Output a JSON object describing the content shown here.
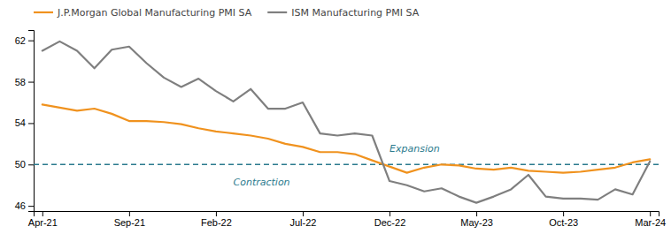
{
  "chart_data": {
    "type": "line",
    "categories": [
      "Apr-21",
      null,
      null,
      null,
      null,
      "Sep-21",
      null,
      null,
      null,
      null,
      "Feb-22",
      null,
      null,
      null,
      null,
      "Jul-22",
      null,
      null,
      null,
      null,
      "Dec-22",
      null,
      null,
      null,
      null,
      "May-23",
      null,
      null,
      null,
      null,
      "Oct-23",
      null,
      null,
      null,
      null,
      "Mar-24"
    ],
    "series": [
      {
        "name": "J.P.Morgan Global Manufacturing PMI SA",
        "color": "#F0921E",
        "values": [
          55.8,
          55.5,
          55.2,
          55.4,
          54.9,
          54.2,
          54.2,
          54.1,
          53.9,
          53.5,
          53.2,
          53.0,
          52.8,
          52.5,
          52.0,
          51.7,
          51.2,
          51.2,
          51.0,
          50.4,
          49.8,
          49.2,
          49.7,
          50.0,
          49.9,
          49.6,
          49.5,
          49.7,
          49.4,
          49.3,
          49.2,
          49.3,
          49.5,
          49.7,
          50.2,
          50.5
        ]
      },
      {
        "name": "ISM Manufacturing PMI SA",
        "color": "#7F7F7F",
        "values": [
          61.0,
          61.9,
          61.0,
          59.3,
          61.1,
          61.4,
          59.8,
          58.4,
          57.5,
          58.3,
          57.1,
          56.1,
          57.3,
          55.4,
          55.4,
          56.0,
          53.0,
          52.8,
          53.0,
          52.8,
          48.4,
          48.0,
          47.4,
          47.7,
          46.9,
          46.3,
          46.9,
          47.6,
          49.0,
          46.9,
          46.7,
          46.7,
          46.6,
          47.6,
          47.1,
          50.3
        ]
      }
    ],
    "reference_lines": [
      {
        "value": 50,
        "color": "#2B7A8D",
        "line_style": "dashed"
      }
    ],
    "annotations": [
      {
        "text": "Expansion",
        "x": 20,
        "y": 51.0,
        "color": "#2B7A8D"
      },
      {
        "text": "Contraction",
        "x": 11,
        "y": 48.8,
        "color": "#2B7A8D"
      }
    ],
    "ylim": [
      45.5,
      63.0
    ],
    "yticks": [
      46,
      50,
      54,
      58,
      62
    ],
    "grid": false,
    "legend": "top-left"
  }
}
